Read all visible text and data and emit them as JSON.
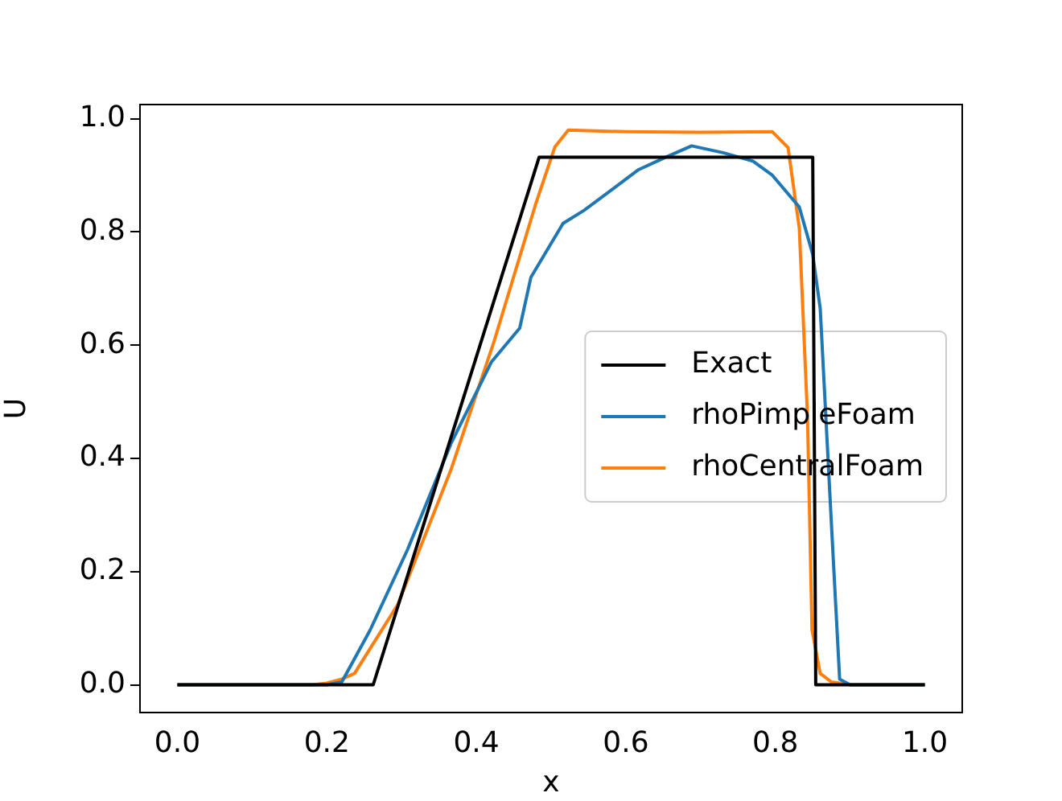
{
  "chart_data": {
    "type": "line",
    "xlabel": "x",
    "ylabel": "U",
    "xlim": [
      -0.05,
      1.05
    ],
    "ylim": [
      -0.049,
      1.025
    ],
    "xticks": [
      {
        "value": 0,
        "label": "0.0"
      },
      {
        "value": 0.2,
        "label": "0.2"
      },
      {
        "value": 0.4,
        "label": "0.4"
      },
      {
        "value": 0.6,
        "label": "0.6"
      },
      {
        "value": 0.8,
        "label": "0.8"
      },
      {
        "value": 1,
        "label": "1.0"
      }
    ],
    "yticks": [
      {
        "value": 0,
        "label": "0.0"
      },
      {
        "value": 0.2,
        "label": "0.2"
      },
      {
        "value": 0.4,
        "label": "0.4"
      },
      {
        "value": 0.6,
        "label": "0.6"
      },
      {
        "value": 0.8,
        "label": "0.8"
      },
      {
        "value": 1,
        "label": "1.0"
      }
    ],
    "grid": false,
    "legend": "right",
    "marker": "none",
    "line_style": "solid",
    "series": [
      {
        "name": "Exact",
        "color": "#000000",
        "x": [
          0,
          0.262,
          0.484,
          0.85,
          0.854,
          1
        ],
        "values": [
          0,
          0,
          0.932,
          0.932,
          0,
          0
        ]
      },
      {
        "name": "rhoPimpleFoam",
        "color": "#1f77b4",
        "x": [
          0,
          0.2,
          0.22,
          0.258,
          0.308,
          0.366,
          0.42,
          0.458,
          0.473,
          0.516,
          0.544,
          0.617,
          0.65,
          0.688,
          0.73,
          0.77,
          0.796,
          0.832,
          0.85,
          0.86,
          0.875,
          0.886,
          0.9,
          1
        ],
        "values": [
          0,
          0,
          0.005,
          0.097,
          0.239,
          0.426,
          0.57,
          0.63,
          0.72,
          0.815,
          0.838,
          0.91,
          0.93,
          0.952,
          0.94,
          0.925,
          0.9,
          0.844,
          0.76,
          0.665,
          0.284,
          0.01,
          0,
          0
        ]
      },
      {
        "name": "rhoCentralFoam",
        "color": "#ff7f0e",
        "x": [
          0,
          0.18,
          0.2,
          0.22,
          0.237,
          0.295,
          0.366,
          0.424,
          0.48,
          0.505,
          0.523,
          0.6,
          0.7,
          0.796,
          0.817,
          0.832,
          0.843,
          0.849,
          0.86,
          0.875,
          0.9,
          1
        ],
        "values": [
          0,
          0,
          0.003,
          0.01,
          0.02,
          0.142,
          0.38,
          0.608,
          0.852,
          0.95,
          0.98,
          0.977,
          0.976,
          0.977,
          0.949,
          0.807,
          0.474,
          0.097,
          0.02,
          0.005,
          0,
          0
        ]
      }
    ]
  }
}
